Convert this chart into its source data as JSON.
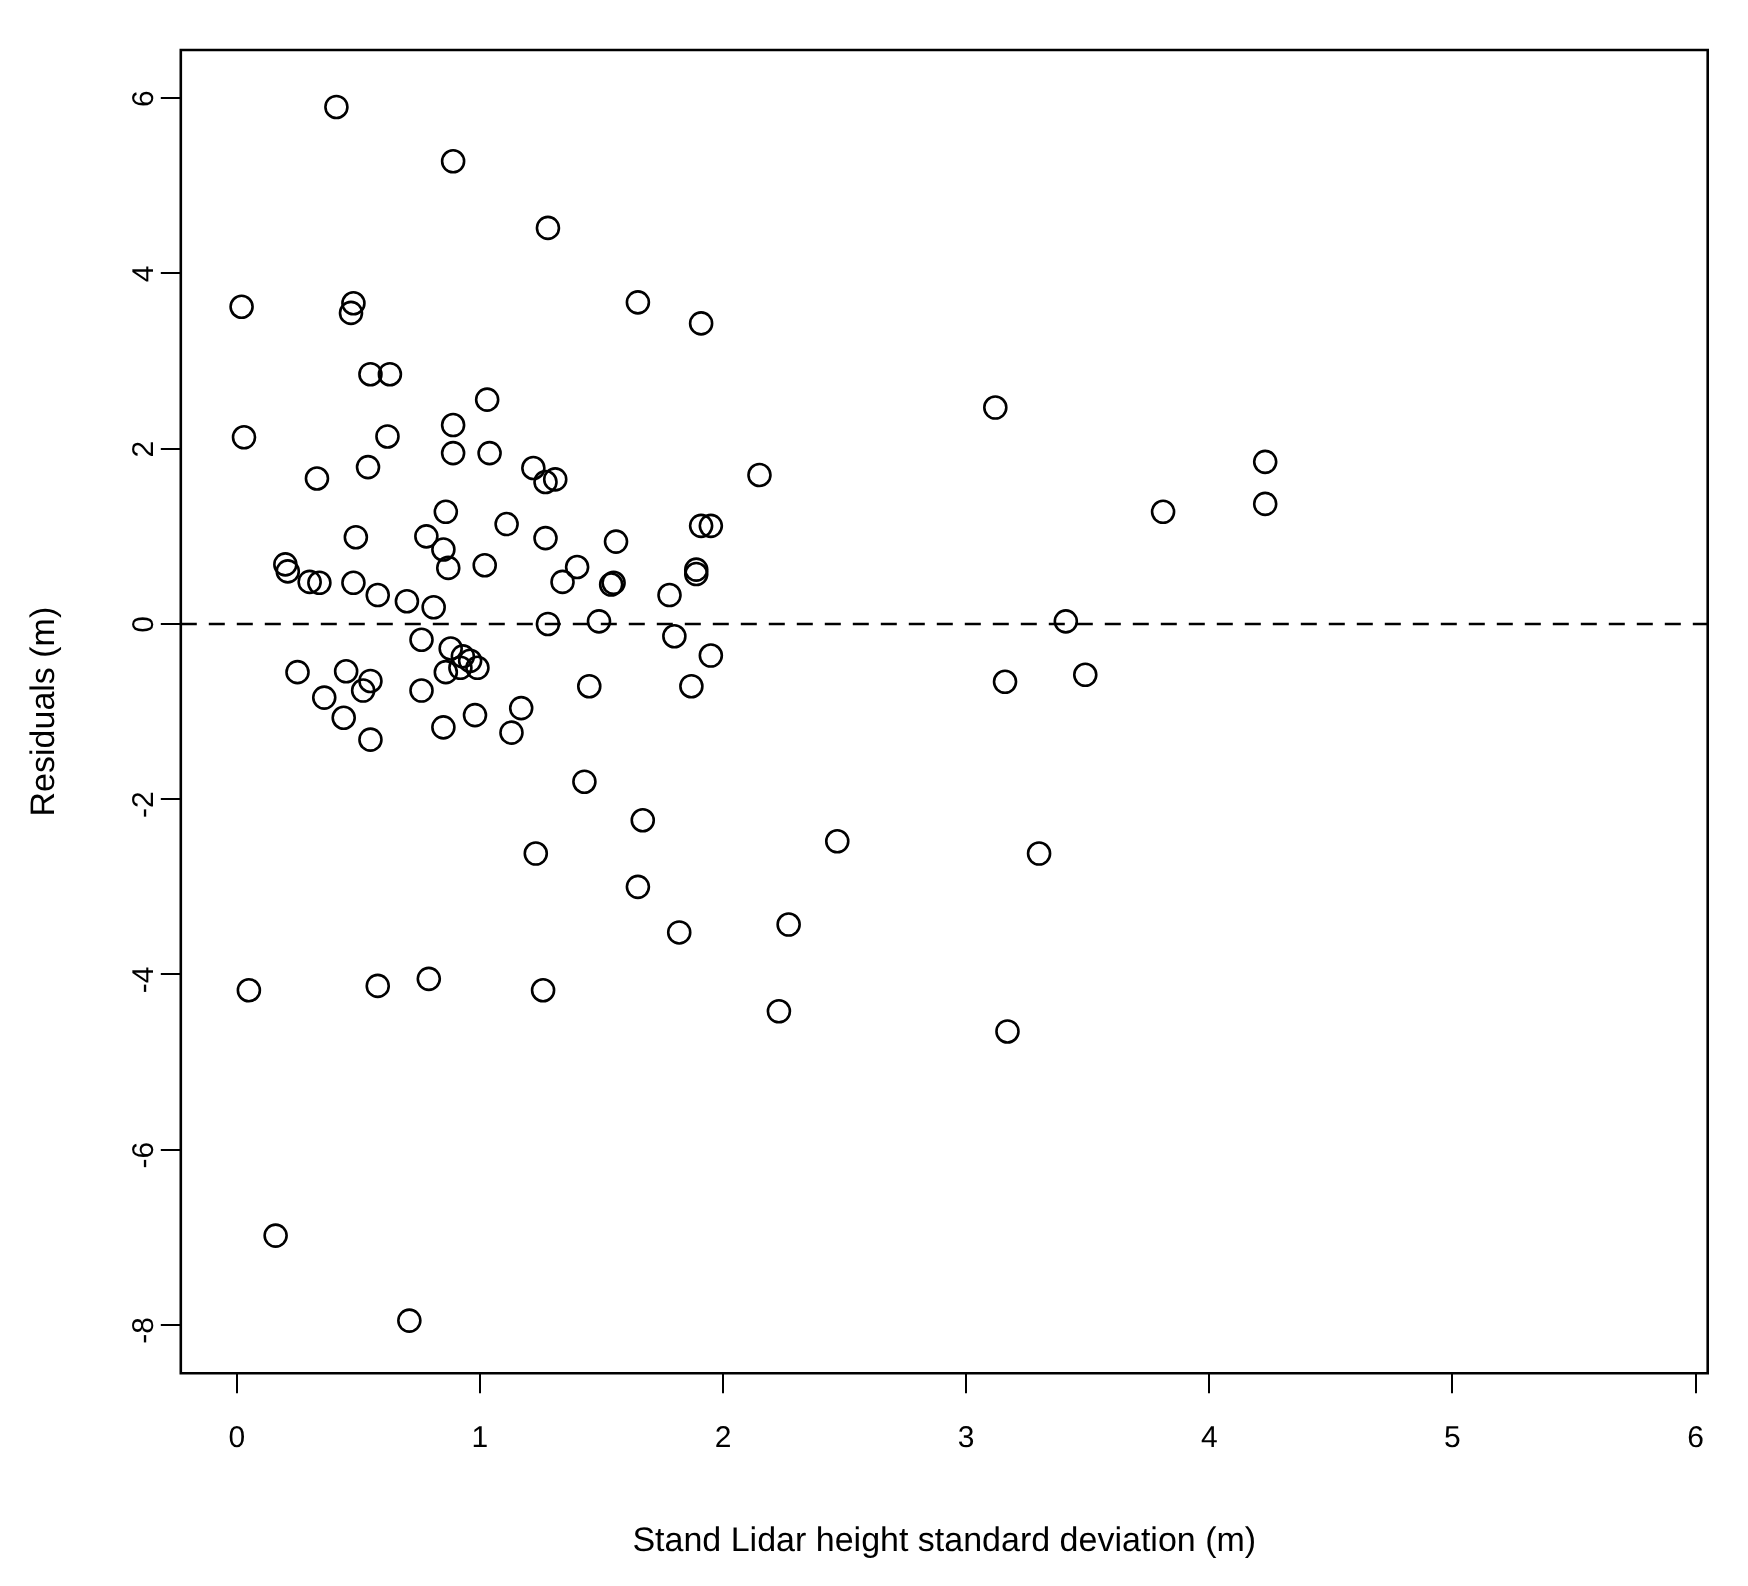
{
  "chart_data": {
    "type": "scatter",
    "xlabel": "Stand Lidar height standard deviation (m)",
    "ylabel": "Residuals (m)",
    "xlim": [
      -0.23,
      6.05
    ],
    "ylim": [
      -8.55,
      6.55
    ],
    "xticks": [
      0,
      1,
      2,
      3,
      4,
      5,
      6
    ],
    "yticks": [
      -8,
      -6,
      -4,
      -2,
      0,
      2,
      4,
      6
    ],
    "grid": false,
    "legend": false,
    "marker": "circle",
    "ref_lines": [
      {
        "axis": "y",
        "value": 0,
        "line_style": "dashed",
        "color": "#000000"
      }
    ],
    "series": [
      {
        "color": "#000000",
        "x": [
          0.41,
          0.89,
          1.28,
          0.02,
          0.48,
          0.47,
          1.65,
          1.91,
          0.03,
          0.55,
          0.63,
          0.62,
          1.03,
          0.89,
          0.33,
          0.54,
          0.89,
          1.04,
          1.22,
          1.27,
          1.31,
          2.15,
          3.12,
          4.23,
          4.23,
          3.81,
          0.86,
          1.11,
          0.49,
          0.78,
          0.85,
          1.56,
          1.27,
          1.91,
          1.95,
          0.2,
          0.21,
          0.34,
          0.3,
          0.48,
          0.58,
          0.7,
          0.81,
          0.87,
          1.02,
          1.34,
          1.4,
          1.55,
          1.54,
          1.89,
          1.89,
          1.78,
          1.28,
          1.49,
          3.41,
          0.76,
          0.88,
          0.93,
          0.96,
          0.92,
          0.99,
          0.86,
          1.8,
          1.95,
          0.25,
          0.45,
          0.55,
          0.52,
          0.36,
          0.44,
          0.55,
          0.76,
          0.85,
          0.98,
          1.17,
          1.13,
          1.45,
          1.87,
          3.16,
          3.49,
          1.43,
          1.67,
          1.23,
          2.47,
          3.3,
          1.65,
          1.82,
          2.27,
          2.23,
          3.17,
          0.05,
          0.58,
          0.79,
          1.26,
          0.16,
          0.71
        ],
        "values": [
          5.9,
          5.28,
          4.52,
          3.62,
          3.66,
          3.55,
          3.67,
          3.43,
          2.13,
          2.85,
          2.85,
          2.14,
          2.56,
          2.27,
          1.66,
          1.79,
          1.95,
          1.95,
          1.78,
          1.62,
          1.65,
          1.7,
          2.47,
          1.85,
          1.37,
          1.28,
          1.28,
          1.14,
          0.99,
          1.0,
          0.85,
          0.94,
          0.98,
          1.12,
          1.12,
          0.68,
          0.6,
          0.47,
          0.48,
          0.47,
          0.33,
          0.26,
          0.19,
          0.64,
          0.67,
          0.48,
          0.65,
          0.47,
          0.45,
          0.57,
          0.62,
          0.33,
          0.0,
          0.03,
          0.03,
          -0.18,
          -0.28,
          -0.37,
          -0.42,
          -0.5,
          -0.5,
          -0.55,
          -0.14,
          -0.36,
          -0.55,
          -0.54,
          -0.65,
          -0.76,
          -0.84,
          -1.07,
          -1.32,
          -0.76,
          -1.18,
          -1.04,
          -0.96,
          -1.24,
          -0.71,
          -0.71,
          -0.66,
          -0.58,
          -1.8,
          -2.24,
          -2.62,
          -2.48,
          -2.62,
          -3.0,
          -3.52,
          -3.43,
          -4.42,
          -4.65,
          -4.18,
          -4.13,
          -4.05,
          -4.18,
          -6.98,
          -7.95
        ]
      }
    ]
  }
}
